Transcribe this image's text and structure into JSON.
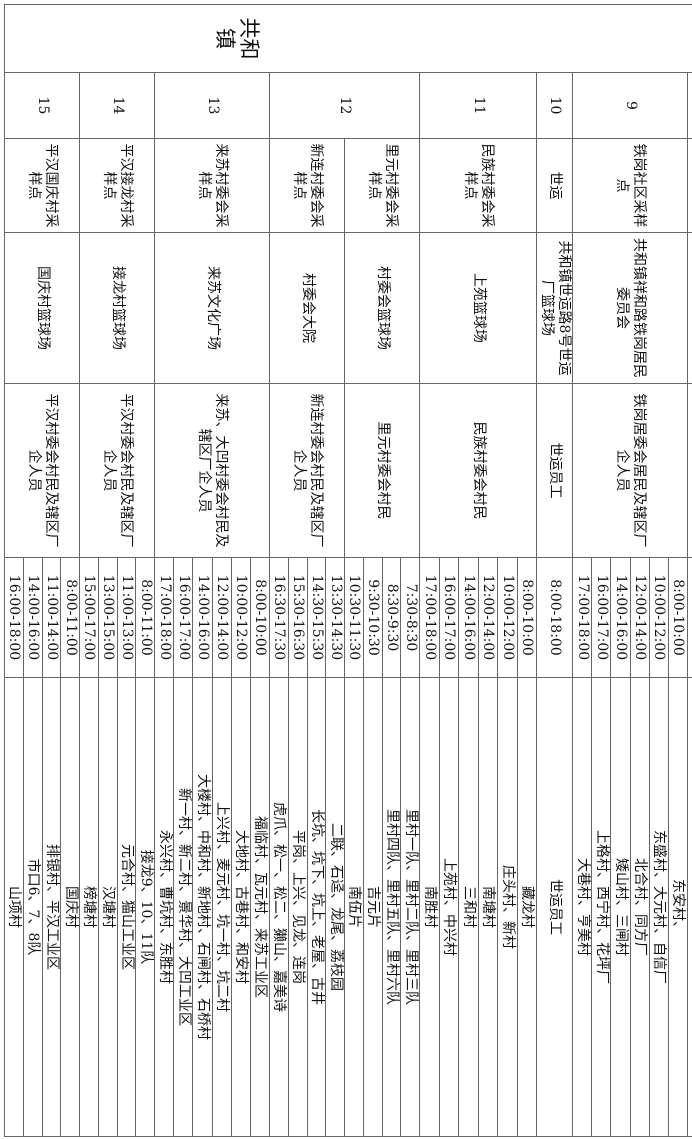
{
  "town": "共和镇",
  "rows": [
    {
      "no": "9",
      "groups": [
        {
          "point": "铁岗社区采样点",
          "address": "共和镇祥和路铁岗居民委员会",
          "target": "铁岗居委会居民及辖区厂企人员",
          "slots": [
            {
              "time": "8:00-10:00",
              "area": "东安村、"
            },
            {
              "time": "10:00-12:00",
              "area": "东盛村、大元村、自信厂"
            },
            {
              "time": "12:00-14:00",
              "area": "北合村、同方厂"
            },
            {
              "time": "14:00-16:00",
              "area": "矮山村、三闸村"
            },
            {
              "time": "16:00-17:00",
              "area": "上格村、西宁村、花坪厂"
            },
            {
              "time": "17:00-18:00",
              "area": "大巷村、亨美村"
            }
          ]
        }
      ]
    },
    {
      "no": "10",
      "groups": [
        {
          "point": "世运",
          "address": "共和镇世运路8号世运厂篮球场",
          "target": "世运员工",
          "slots": [
            {
              "time": "8:00-18:00",
              "area": "世运员工"
            }
          ]
        }
      ]
    },
    {
      "no": "11",
      "groups": [
        {
          "point": "民族村委会采样点",
          "address": "上苑篮球场",
          "target": "民族村委会村民",
          "slots": [
            {
              "time": "8:00-10:00",
              "area": "藏龙村"
            },
            {
              "time": "10:00-12:00",
              "area": "庄头村、新村"
            },
            {
              "time": "12:00-14:00",
              "area": "南塘村"
            },
            {
              "time": "14:00-16:00",
              "area": "三和村"
            },
            {
              "time": "16:00-17:00",
              "area": "上苑村、中兴村"
            },
            {
              "time": "17:00-18:00",
              "area": "南胜村"
            }
          ]
        }
      ]
    },
    {
      "no": "12",
      "groups": [
        {
          "point": "里元村委会采样点",
          "address": "村委会篮球场",
          "target": "里元村委会村民",
          "slots": [
            {
              "time": "7:30-8:30",
              "area": "里村一队、里村二队、里村三队"
            },
            {
              "time": "8:30-9:30",
              "area": "里村四队、里村五队、里村六队"
            },
            {
              "time": "9:30-10:30",
              "area": "吉元片"
            },
            {
              "time": "10:30-11:30",
              "area": "南伍片"
            }
          ]
        },
        {
          "point": "新连村委会采样点",
          "address": "村委会大院",
          "target": "新连村委会村民及辖区厂企人员",
          "slots": [
            {
              "time": "13:30-14:30",
              "area": "二联、石迳、龙尾、荔枝园"
            },
            {
              "time": "14:30-15:30",
              "area": "长坑、坑下、坑上、老屋、古井"
            },
            {
              "time": "15:30-16:30",
              "area": "平岗、上兴、见龙、连岗"
            },
            {
              "time": "16:30-17:30",
              "area": "虎爪、松一、松二、獭山、嘉美诗"
            }
          ]
        }
      ]
    },
    {
      "no": "13",
      "groups": [
        {
          "point": "来苏村委会采样点",
          "address": "来苏文化广场",
          "target": "来苏、大凹村委会村民及辖区厂企人员",
          "slots": [
            {
              "time": "8:00-10:00",
              "area": "福临村、瓦元村、来苏工业区"
            },
            {
              "time": "10:00-12:00",
              "area": "大地村、古巷村、和安村"
            },
            {
              "time": "12:00-14:00",
              "area": "上兴村、麦元村、坑一村、坑二村"
            },
            {
              "time": "14:00-16:00",
              "area": "大楼村、中和村、新地村、石闸村、石桥村"
            },
            {
              "time": "16:00-17:00",
              "area": "新一村、新二村、景华村、大凹工业区"
            },
            {
              "time": "17:00-18:00",
              "area": "永兴村、曹坑村、东胜村"
            }
          ]
        }
      ]
    },
    {
      "no": "14",
      "groups": [
        {
          "point": "平汉接龙村采样点",
          "address": "接龙村篮球场",
          "target": "平汉村委会村民及辖区厂企人员",
          "slots": [
            {
              "time": "8:00-11:00",
              "area": "接龙9、10、11队"
            },
            {
              "time": "11:00-13:00",
              "area": "元合村、猫山工业区"
            },
            {
              "time": "13:00-15:00",
              "area": "汉塘村"
            },
            {
              "time": "15:00-17:00",
              "area": "榜塘村"
            }
          ]
        }
      ]
    },
    {
      "no": "15",
      "groups": [
        {
          "point": "平汉国庆村采样点",
          "address": "国庆村篮球场",
          "target": "平汉村委会村民及辖区厂企人员",
          "slots": [
            {
              "time": "8:00-11:00",
              "area": "国庆村"
            },
            {
              "time": "11:00-14:00",
              "area": "排银村、平汉工业区"
            },
            {
              "time": "14:00-16:00",
              "area": "市口6、7、8队"
            },
            {
              "time": "16:00-18:00",
              "area": "山项村"
            }
          ]
        }
      ]
    }
  ]
}
